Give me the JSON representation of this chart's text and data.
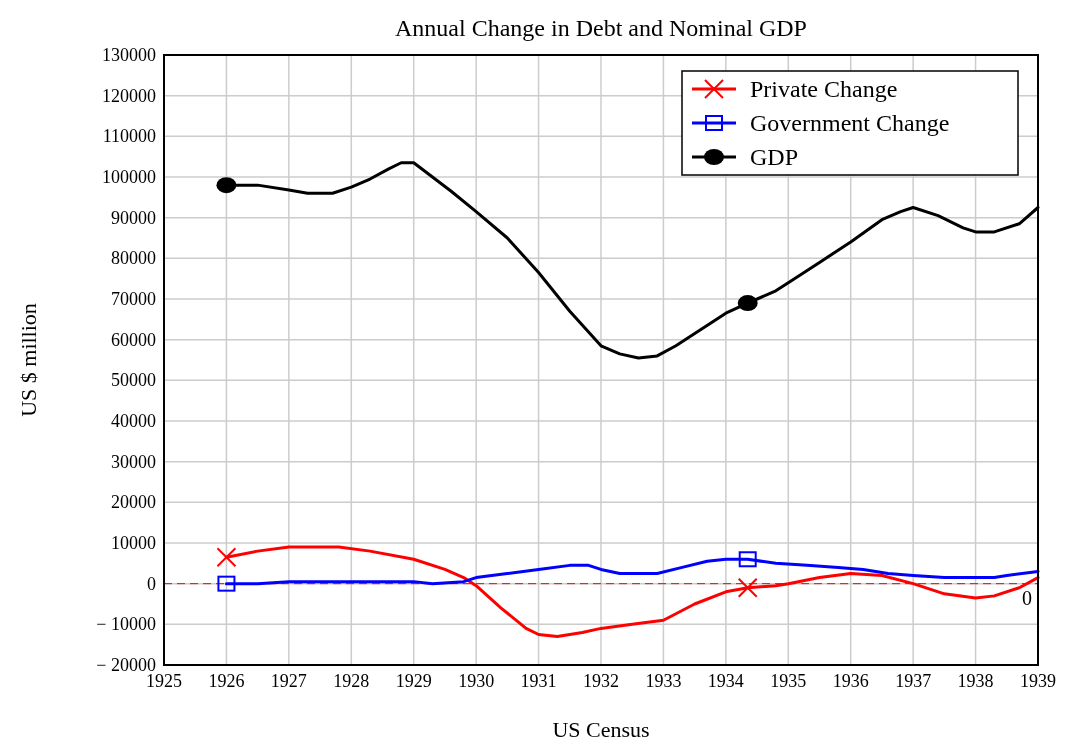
{
  "chart_data": {
    "type": "line",
    "title": "Annual Change in Debt and Nominal GDP",
    "xlabel": "US Census",
    "ylabel": "US $ million",
    "xlim": [
      1925,
      1939
    ],
    "xticks": [
      1925,
      1926,
      1927,
      1928,
      1929,
      1930,
      1931,
      1932,
      1933,
      1934,
      1935,
      1936,
      1937,
      1938,
      1939
    ],
    "ylim": [
      -20000,
      130000
    ],
    "yticks": [
      {
        "value": -20000,
        "label": "− 20000"
      },
      {
        "value": -10000,
        "label": "− 10000"
      },
      0,
      10000,
      20000,
      30000,
      40000,
      50000,
      60000,
      70000,
      80000,
      90000,
      100000,
      110000,
      120000,
      130000
    ],
    "grid": true,
    "legend": "top right",
    "line_style": "solid",
    "ref_lines": [
      {
        "axis": "y",
        "value": 0,
        "label": "0",
        "color": "#ff0000",
        "line_style": "dashed"
      }
    ],
    "series": [
      {
        "type": "scatter",
        "color": "#ff0000",
        "marker": "cross",
        "x": [
          1926,
          1934.35
        ],
        "values": [
          6500,
          -1000
        ]
      },
      {
        "type": "scatter",
        "color": "#0000ff",
        "marker": "square",
        "x": [
          1926,
          1934.35
        ],
        "values": [
          0,
          6000
        ]
      },
      {
        "type": "scatter",
        "color": "#000000",
        "marker": "circle",
        "x": [
          1926,
          1934.35
        ],
        "values": [
          98000,
          69000
        ]
      },
      {
        "name": "Private Change",
        "color": "#ff0000",
        "x": [
          1926,
          1926.5,
          1927,
          1927.8,
          1928.3,
          1929,
          1929.5,
          1929.8,
          1930,
          1930.4,
          1930.8,
          1931,
          1931.3,
          1931.7,
          1932,
          1932.5,
          1933,
          1933.5,
          1934,
          1934.35,
          1934.8,
          1935,
          1935.5,
          1936,
          1936.5,
          1937,
          1937.5,
          1938,
          1938.3,
          1938.7,
          1939
        ],
        "values": [
          6500,
          8000,
          9000,
          9000,
          8000,
          6000,
          3500,
          1500,
          -500,
          -6000,
          -11000,
          -12500,
          -13000,
          -12000,
          -11000,
          -10000,
          -9000,
          -5000,
          -2000,
          -1000,
          -500,
          0,
          1500,
          2500,
          2000,
          0,
          -2500,
          -3500,
          -3000,
          -1000,
          1500
        ]
      },
      {
        "name": "Government Change",
        "color": "#0000ff",
        "x": [
          1926,
          1926.5,
          1927,
          1928.5,
          1929,
          1929.3,
          1929.8,
          1930,
          1930.5,
          1931,
          1931.5,
          1931.8,
          1932,
          1932.3,
          1932.9,
          1933.3,
          1933.7,
          1934,
          1934.35,
          1934.8,
          1935.3,
          1935.8,
          1936.2,
          1936.6,
          1937,
          1937.5,
          1938.3,
          1938.5,
          1939
        ],
        "values": [
          0,
          0,
          500,
          500,
          500,
          0,
          500,
          1500,
          2500,
          3500,
          4500,
          4500,
          3500,
          2500,
          2500,
          4000,
          5500,
          6000,
          6000,
          5000,
          4500,
          4000,
          3500,
          2500,
          2000,
          1500,
          1500,
          2000,
          3000
        ]
      },
      {
        "name": "GDP",
        "color": "#000000",
        "x": [
          1926,
          1926.5,
          1927,
          1927.3,
          1927.7,
          1928,
          1928.3,
          1928.6,
          1928.8,
          1929,
          1929.3,
          1929.6,
          1930,
          1930.5,
          1931,
          1931.5,
          1932,
          1932.3,
          1932.6,
          1932.9,
          1933.2,
          1933.6,
          1934,
          1934.35,
          1934.8,
          1935,
          1935.5,
          1936,
          1936.5,
          1936.8,
          1937,
          1937.4,
          1937.8,
          1938,
          1938.3,
          1938.7,
          1939
        ],
        "values": [
          98000,
          98000,
          96800,
          96000,
          96000,
          97500,
          99500,
          102000,
          103500,
          103500,
          100000,
          96500,
          91500,
          85000,
          76500,
          67000,
          58500,
          56500,
          55500,
          56000,
          58500,
          62500,
          66500,
          69000,
          72000,
          74000,
          79000,
          84000,
          89500,
          91500,
          92500,
          90500,
          87500,
          86500,
          86500,
          88500,
          92500
        ]
      }
    ]
  }
}
